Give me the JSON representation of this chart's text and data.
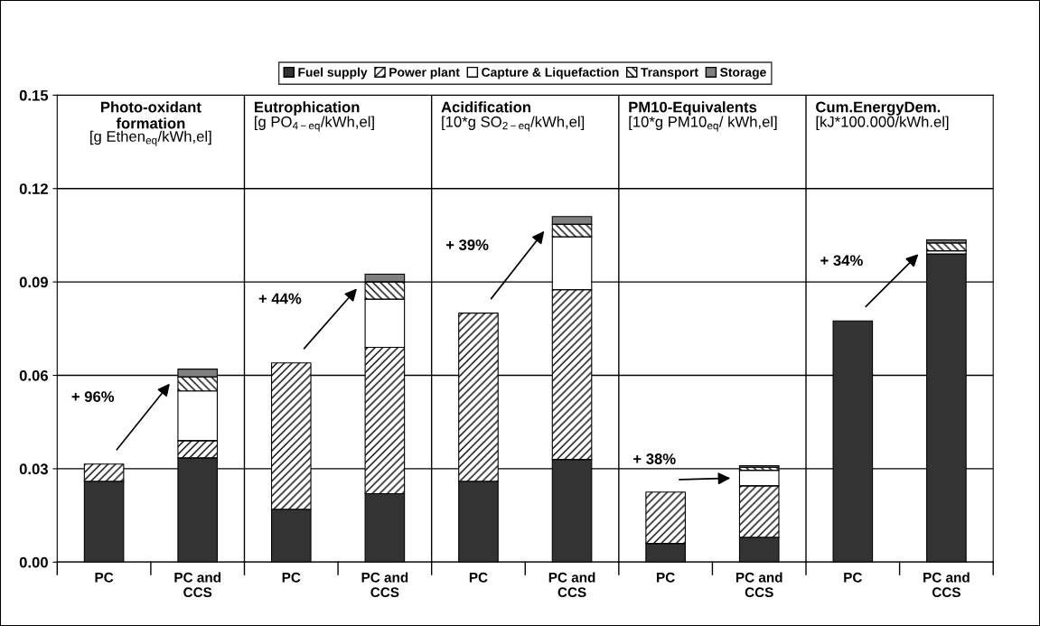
{
  "chart_data": {
    "type": "bar",
    "stacked": true,
    "categories": [
      "PC",
      "PC and\nCCS",
      "PC",
      "PC and\nCCS",
      "PC",
      "PC and\nCCS",
      "PC",
      "PC and\nCCS",
      "PC",
      "PC and\nCCS"
    ],
    "series": [
      {
        "name": "Fuel supply",
        "color": "#333333",
        "values": [
          0.026,
          0.0335,
          0.017,
          0.022,
          0.026,
          0.033,
          0.006,
          0.008,
          0.0775,
          0.099
        ]
      },
      {
        "name": "Power plant",
        "color": "#ffffff",
        "values": [
          0.0055,
          0.0055,
          0.047,
          0.047,
          0.054,
          0.0545,
          0.0165,
          0.0165,
          null,
          null
        ]
      },
      {
        "name": "Capture & Liquefaction",
        "color": "#ffffff",
        "values": [
          null,
          0.016,
          null,
          0.0155,
          null,
          0.017,
          null,
          0.005,
          null,
          0.001
        ]
      },
      {
        "name": "Transport",
        "color": "#ffffff",
        "values": [
          null,
          0.0045,
          null,
          0.0055,
          null,
          0.004,
          null,
          0.001,
          null,
          0.0025
        ]
      },
      {
        "name": "Storage",
        "color": "#808080",
        "values": [
          null,
          0.0025,
          null,
          0.0025,
          null,
          0.0025,
          null,
          0.0005,
          null,
          0.001
        ]
      }
    ],
    "ylim": [
      0,
      0.15
    ],
    "yticks": [
      {
        "value": 0,
        "label": "0.00"
      },
      {
        "value": 0.03,
        "label": "0.03"
      },
      {
        "value": 0.06,
        "label": "0.06"
      },
      {
        "value": 0.09,
        "label": "0.09"
      },
      {
        "value": 0.12,
        "label": "0.12"
      },
      {
        "value": 0.15,
        "label": "0.15"
      }
    ],
    "grid": "y",
    "legend": "top",
    "annotations": [
      "Photo-oxidant\nformation\n[g Ethen$_{eq}$/kWh,el]",
      "Eutrophication\n[g PO$_{4−eq}$/kWh,el]",
      "Acidification\n[10*g SO$_{2−eq}$/kWh,el]",
      "PM10-Equivalents\n[10*g PM10$_{eq}$/ kWh,el]",
      "Cum.EnergyDem.\n[kJ*100.000/kWh.el]",
      "+ 96%",
      "+ 44%",
      "+ 39%",
      "+ 38%",
      "+ 34%"
    ]
  }
}
